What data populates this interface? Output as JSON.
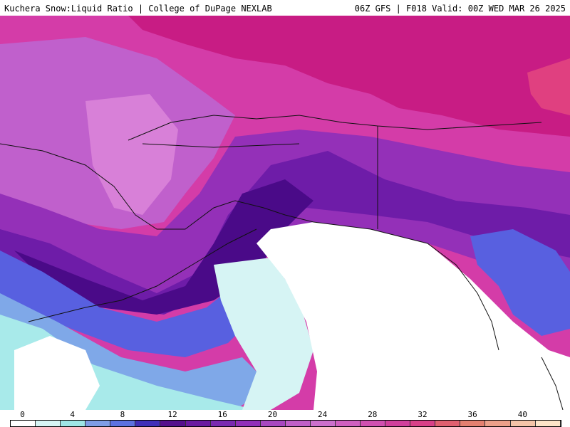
{
  "header": {
    "title_left": "Kuchera Snow:Liquid Ratio | College of DuPage NEXLAB",
    "title_right": "06Z GFS | F018 Valid: 00Z WED MAR 26 2025"
  },
  "colorbar": {
    "tick_labels": [
      "0",
      "4",
      "8",
      "12",
      "16",
      "20",
      "24",
      "28",
      "32",
      "36",
      "40"
    ],
    "colors": [
      "#ffffff",
      "#d6f4f4",
      "#9ee6e6",
      "#7e9de6",
      "#5c72e0",
      "#4030b8",
      "#55108c",
      "#6a1aa0",
      "#7a2ab0",
      "#9030b8",
      "#a848c0",
      "#c060c8",
      "#cc70cc",
      "#d060c0",
      "#d050b0",
      "#d0409c",
      "#d84088",
      "#e06070",
      "#e48070",
      "#eca08a",
      "#f4c4a8",
      "#fde4c8"
    ]
  },
  "map_colors": {
    "ocean_clear": "#ffffff",
    "cyan_light": "#d6f4f4",
    "cyan": "#a8eaea",
    "blue_light": "#7fa8e8",
    "blue": "#5860e0",
    "purple_dark": "#4a0a88",
    "purple": "#6e1ca8",
    "violet": "#9430b8",
    "orchid": "#c060cc",
    "orchid_light": "#d880d8",
    "magenta": "#d43ca8",
    "magenta_dark": "#c81c84",
    "pink_red": "#e04080",
    "coastline": "#111111"
  }
}
